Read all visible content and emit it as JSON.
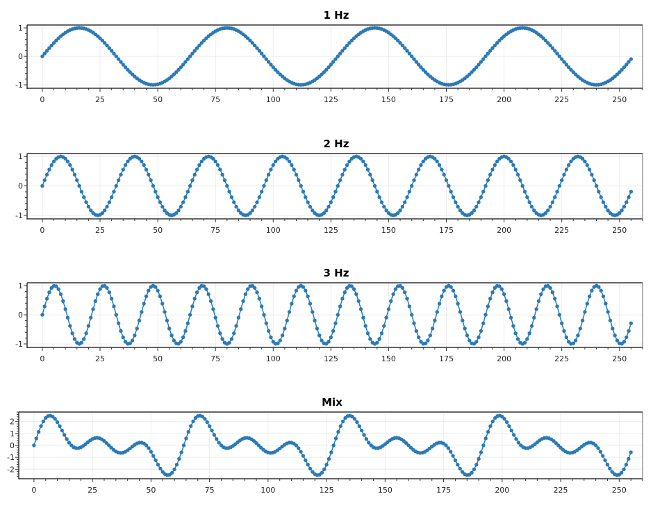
{
  "colors": {
    "marker": "#2a7ab8",
    "grid": "#ececec",
    "axis": "#333333",
    "frame": "#666666"
  },
  "chart_data": [
    {
      "type": "scatter",
      "title": "1 Hz",
      "x_start": 0,
      "x_end": 255,
      "function": "sin",
      "cycles": 4,
      "samples": 256,
      "amplitude": 1,
      "xlim": [
        -6.6,
        260
      ],
      "ylim": [
        -1.12,
        1.1
      ],
      "xticks": [
        0,
        25,
        50,
        75,
        100,
        125,
        150,
        175,
        200,
        225,
        250
      ],
      "yticks": [
        1,
        0,
        -1
      ],
      "grid": true,
      "marker": "circle"
    },
    {
      "type": "scatter",
      "title": "2 Hz",
      "x_start": 0,
      "x_end": 255,
      "function": "sin",
      "cycles": 8,
      "samples": 256,
      "amplitude": 1,
      "xlim": [
        -6.6,
        260
      ],
      "ylim": [
        -1.12,
        1.1
      ],
      "xticks": [
        0,
        25,
        50,
        75,
        100,
        125,
        150,
        175,
        200,
        225,
        250
      ],
      "yticks": [
        1,
        0,
        -1
      ],
      "grid": true,
      "marker": "circle"
    },
    {
      "type": "scatter",
      "title": "3 Hz",
      "x_start": 0,
      "x_end": 255,
      "function": "sin",
      "cycles": 12,
      "samples": 256,
      "amplitude": 1,
      "xlim": [
        -6.6,
        260
      ],
      "ylim": [
        -1.12,
        1.1
      ],
      "xticks": [
        0,
        25,
        50,
        75,
        100,
        125,
        150,
        175,
        200,
        225,
        250
      ],
      "yticks": [
        1,
        0,
        -1
      ],
      "grid": true,
      "marker": "circle"
    },
    {
      "type": "scatter",
      "title": "Mix",
      "x_start": 0,
      "x_end": 255,
      "function": "sum of 1 Hz, 2 Hz, 3 Hz",
      "samples": 256,
      "xlim": [
        -6.5,
        260
      ],
      "ylim": [
        -2.8,
        2.8
      ],
      "xticks": [
        0,
        25,
        50,
        75,
        100,
        125,
        150,
        175,
        200,
        225,
        250
      ],
      "yticks": [
        2,
        1,
        0,
        -1,
        -2
      ],
      "grid": true,
      "marker": "circle"
    }
  ]
}
